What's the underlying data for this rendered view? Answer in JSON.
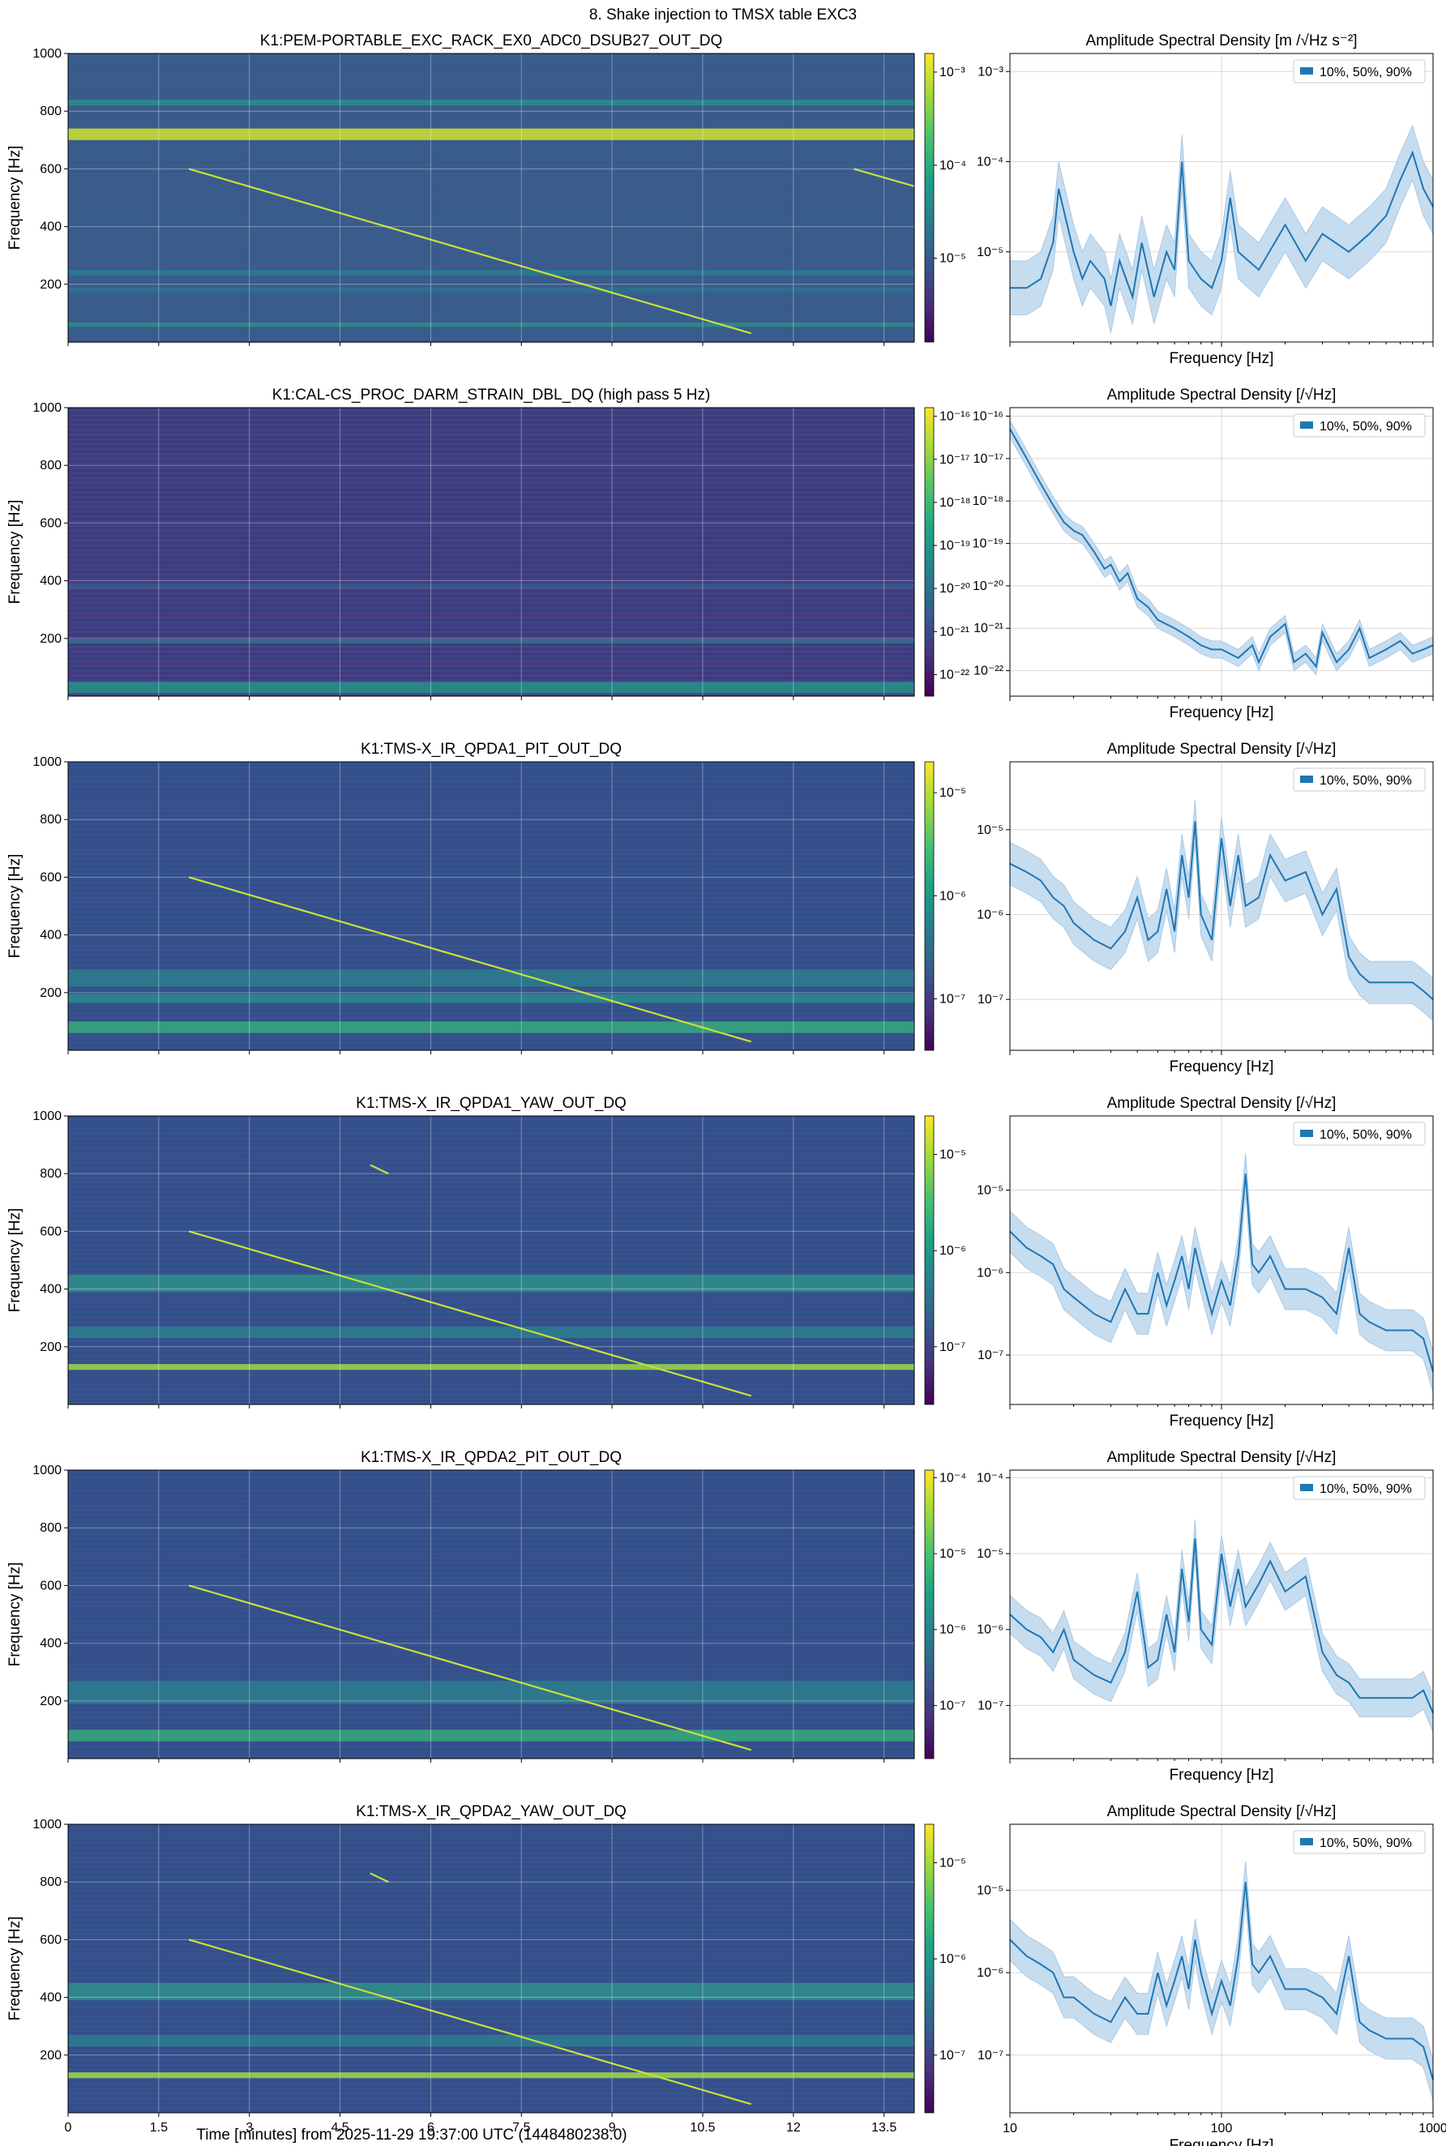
{
  "suptitle": "8. Shake injection to TMSX table EXC3",
  "spectrogram_ylabel": "Frequency [Hz]",
  "asd_xlabel": "Frequency [Hz]",
  "time_xlabel": "Time [minutes] from 2025-11-29 19:37:00 UTC (1448480238.0)",
  "legend_label": "10%, 50%, 90%",
  "colors": {
    "asd_line": "#1f77b4",
    "asd_band": "#c6dcef",
    "grid": "#d8d8d8"
  },
  "chart_data": [
    {
      "type": "heatmap",
      "title": "K1:PEM-PORTABLE_EXC_RACK_EX0_ADC0_DSUB27_OUT_DQ",
      "ylabel": "Frequency [Hz]",
      "xlim": [
        0,
        14
      ],
      "ylim": [
        0,
        1000
      ],
      "yticks": [
        "200",
        "400",
        "600",
        "800",
        "1000"
      ],
      "xticks": [
        "0",
        "1.5",
        "3",
        "4.5",
        "6",
        "7.5",
        "9",
        "10.5",
        "12",
        "13.5"
      ],
      "colorbar_ticks": [
        "10⁻⁵",
        "10⁻⁴",
        "10⁻³"
      ],
      "colorbar_log": [
        -5.9,
        -2.8
      ],
      "bg": "#3b5a8c",
      "bands": [
        {
          "f": 720,
          "w": 40,
          "c": "#c8dc32"
        },
        {
          "f": 830,
          "w": 20,
          "c": "#2a8c8a"
        },
        {
          "f": 240,
          "w": 20,
          "c": "#2a7a8e"
        },
        {
          "f": 180,
          "w": 20,
          "c": "#2d6f8e"
        },
        {
          "f": 60,
          "w": 15,
          "c": "#2e8a8a"
        }
      ],
      "sweeps": [
        {
          "t0": 2.0,
          "f0": 600,
          "t1": 11.3,
          "f1": 30
        },
        {
          "t0": 13.0,
          "f0": 600,
          "t1": 14,
          "f1": 540
        }
      ]
    },
    {
      "type": "heatmap",
      "title": "K1:CAL-CS_PROC_DARM_STRAIN_DBL_DQ (high pass 5 Hz)",
      "ylabel": "Frequency [Hz]",
      "xlim": [
        0,
        14
      ],
      "ylim": [
        0,
        1000
      ],
      "yticks": [
        "200",
        "400",
        "600",
        "800",
        "1000"
      ],
      "xticks": [
        "0",
        "1.5",
        "3",
        "4.5",
        "6",
        "7.5",
        "9",
        "10.5",
        "12",
        "13.5"
      ],
      "colorbar_ticks": [
        "10⁻²²",
        "10⁻²¹",
        "10⁻²⁰",
        "10⁻¹⁹",
        "10⁻¹⁸",
        "10⁻¹⁷",
        "10⁻¹⁶"
      ],
      "colorbar_log": [
        -22.5,
        -15.8
      ],
      "bg": "#423a80",
      "bands": [
        {
          "f": 380,
          "w": 20,
          "c": "#3b5a8c"
        },
        {
          "f": 190,
          "w": 15,
          "c": "#3b6a8c"
        },
        {
          "f": 30,
          "w": 40,
          "c": "#2a8c8a"
        }
      ],
      "sweeps": []
    },
    {
      "type": "heatmap",
      "title": "K1:TMS-X_IR_QPDA1_PIT_OUT_DQ",
      "ylabel": "Frequency [Hz]",
      "xlim": [
        0,
        14
      ],
      "ylim": [
        0,
        1000
      ],
      "yticks": [
        "200",
        "400",
        "600",
        "800",
        "1000"
      ],
      "xticks": [
        "0",
        "1.5",
        "3",
        "4.5",
        "6",
        "7.5",
        "9",
        "10.5",
        "12",
        "13.5"
      ],
      "colorbar_ticks": [
        "10⁻⁷",
        "10⁻⁶",
        "10⁻⁵"
      ],
      "colorbar_log": [
        -7.5,
        -4.7
      ],
      "bg": "#364e8c",
      "bands": [
        {
          "f": 250,
          "w": 60,
          "c": "#2c7b8e"
        },
        {
          "f": 180,
          "w": 30,
          "c": "#2a8a8c"
        },
        {
          "f": 80,
          "w": 40,
          "c": "#35a57c"
        }
      ],
      "sweeps": [
        {
          "t0": 2.0,
          "f0": 600,
          "t1": 11.3,
          "f1": 30
        }
      ]
    },
    {
      "type": "heatmap",
      "title": "K1:TMS-X_IR_QPDA1_YAW_OUT_DQ",
      "ylabel": "Frequency [Hz]",
      "xlim": [
        0,
        14
      ],
      "ylim": [
        0,
        1000
      ],
      "yticks": [
        "200",
        "400",
        "600",
        "800",
        "1000"
      ],
      "xticks": [
        "0",
        "1.5",
        "3",
        "4.5",
        "6",
        "7.5",
        "9",
        "10.5",
        "12",
        "13.5"
      ],
      "colorbar_ticks": [
        "10⁻⁷",
        "10⁻⁶",
        "10⁻⁵"
      ],
      "colorbar_log": [
        -7.6,
        -4.6
      ],
      "bg": "#364e8c",
      "bands": [
        {
          "f": 420,
          "w": 60,
          "c": "#2f8c8a"
        },
        {
          "f": 250,
          "w": 40,
          "c": "#2c7b8e"
        },
        {
          "f": 130,
          "w": 20,
          "c": "#9ad24a"
        }
      ],
      "sweeps": [
        {
          "t0": 2.0,
          "f0": 600,
          "t1": 11.3,
          "f1": 30
        },
        {
          "t0": 5.0,
          "f0": 830,
          "t1": 5.3,
          "f1": 800
        }
      ]
    },
    {
      "type": "heatmap",
      "title": "K1:TMS-X_IR_QPDA2_PIT_OUT_DQ",
      "ylabel": "Frequency [Hz]",
      "xlim": [
        0,
        14
      ],
      "ylim": [
        0,
        1000
      ],
      "yticks": [
        "200",
        "400",
        "600",
        "800",
        "1000"
      ],
      "xticks": [
        "0",
        "1.5",
        "3",
        "4.5",
        "6",
        "7.5",
        "9",
        "10.5",
        "12",
        "13.5"
      ],
      "colorbar_ticks": [
        "10⁻⁷",
        "10⁻⁶",
        "10⁻⁵",
        "10⁻⁴"
      ],
      "colorbar_log": [
        -7.7,
        -3.9
      ],
      "bg": "#364e8c",
      "bands": [
        {
          "f": 230,
          "w": 80,
          "c": "#2c7b8e"
        },
        {
          "f": 80,
          "w": 40,
          "c": "#35a57c"
        }
      ],
      "sweeps": [
        {
          "t0": 2.0,
          "f0": 600,
          "t1": 11.3,
          "f1": 30
        }
      ]
    },
    {
      "type": "heatmap",
      "title": "K1:TMS-X_IR_QPDA2_YAW_OUT_DQ",
      "ylabel": "Frequency [Hz]",
      "xlim": [
        0,
        14
      ],
      "ylim": [
        0,
        1000
      ],
      "yticks": [
        "200",
        "400",
        "600",
        "800",
        "1000"
      ],
      "xticks": [
        "0",
        "1.5",
        "3",
        "4.5",
        "6",
        "7.5",
        "9",
        "10.5",
        "12",
        "13.5"
      ],
      "colorbar_ticks": [
        "10⁻⁷",
        "10⁻⁶",
        "10⁻⁵"
      ],
      "colorbar_log": [
        -7.6,
        -4.6
      ],
      "bg": "#364e8c",
      "bands": [
        {
          "f": 420,
          "w": 60,
          "c": "#2f8c8a"
        },
        {
          "f": 250,
          "w": 40,
          "c": "#2c7b8e"
        },
        {
          "f": 130,
          "w": 20,
          "c": "#9ad24a"
        }
      ],
      "sweeps": [
        {
          "t0": 2.0,
          "f0": 600,
          "t1": 11.3,
          "f1": 30
        },
        {
          "t0": 5.0,
          "f0": 830,
          "t1": 5.3,
          "f1": 800
        }
      ]
    },
    {
      "type": "line",
      "title": "Amplitude Spectral Density [m /√Hz s⁻²]",
      "xlabel": "Frequency [Hz]",
      "xscale": "log",
      "yscale": "log",
      "xlim": [
        10,
        1000
      ],
      "ylog": [
        -6.0,
        -2.8
      ],
      "yticks": [
        {
          "v": -5,
          "l": "10⁻⁵"
        },
        {
          "v": -4,
          "l": "10⁻⁴"
        },
        {
          "v": -3,
          "l": "10⁻³"
        }
      ],
      "xticks": [
        "10",
        "100",
        "1000"
      ],
      "show_xticklabels": false,
      "legend": "10%, 50%, 90%",
      "series": {
        "x": [
          10,
          12,
          14,
          16,
          17,
          20,
          22,
          24,
          28,
          30,
          33,
          38,
          42,
          48,
          55,
          60,
          65,
          70,
          80,
          90,
          100,
          110,
          120,
          150,
          200,
          250,
          300,
          400,
          500,
          600,
          700,
          800,
          900,
          1000
        ],
        "y": [
          -5.4,
          -5.4,
          -5.3,
          -4.9,
          -4.3,
          -5.0,
          -5.3,
          -5.1,
          -5.3,
          -5.6,
          -5.1,
          -5.5,
          -4.9,
          -5.5,
          -5.0,
          -5.2,
          -4.0,
          -5.1,
          -5.3,
          -5.4,
          -5.1,
          -4.4,
          -5.0,
          -5.2,
          -4.7,
          -5.1,
          -4.8,
          -5.0,
          -4.8,
          -4.6,
          -4.2,
          -3.9,
          -4.3,
          -4.5
        ]
      },
      "band": 0.3
    },
    {
      "type": "line",
      "title": "Amplitude Spectral Density [/√Hz]",
      "xlabel": "Frequency [Hz]",
      "xscale": "log",
      "yscale": "log",
      "xlim": [
        10,
        1000
      ],
      "ylog": [
        -22.6,
        -15.8
      ],
      "yticks": [
        {
          "v": -22,
          "l": "10⁻²²"
        },
        {
          "v": -21,
          "l": "10⁻²¹"
        },
        {
          "v": -20,
          "l": "10⁻²⁰"
        },
        {
          "v": -19,
          "l": "10⁻¹⁹"
        },
        {
          "v": -18,
          "l": "10⁻¹⁸"
        },
        {
          "v": -17,
          "l": "10⁻¹⁷"
        },
        {
          "v": -16,
          "l": "10⁻¹⁶"
        }
      ],
      "xticks": [
        "10",
        "100",
        "1000"
      ],
      "show_xticklabels": false,
      "legend": "10%, 50%, 90%",
      "series": {
        "x": [
          10,
          12,
          14,
          16,
          18,
          20,
          22,
          25,
          28,
          30,
          33,
          36,
          40,
          45,
          50,
          60,
          70,
          80,
          90,
          100,
          120,
          140,
          150,
          170,
          200,
          220,
          250,
          280,
          300,
          350,
          400,
          450,
          500,
          600,
          700,
          800,
          900,
          1000
        ],
        "y": [
          -16.3,
          -17.0,
          -17.6,
          -18.1,
          -18.5,
          -18.7,
          -18.8,
          -19.2,
          -19.6,
          -19.5,
          -19.9,
          -19.7,
          -20.3,
          -20.5,
          -20.8,
          -21.0,
          -21.2,
          -21.4,
          -21.5,
          -21.5,
          -21.7,
          -21.4,
          -21.8,
          -21.2,
          -20.9,
          -21.8,
          -21.6,
          -21.9,
          -21.1,
          -21.8,
          -21.5,
          -21.0,
          -21.7,
          -21.5,
          -21.3,
          -21.6,
          -21.5,
          -21.4
        ]
      },
      "band": 0.2
    },
    {
      "type": "line",
      "title": "Amplitude Spectral Density [/√Hz]",
      "xlabel": "Frequency [Hz]",
      "xscale": "log",
      "yscale": "log",
      "xlim": [
        10,
        1000
      ],
      "ylog": [
        -7.6,
        -4.2
      ],
      "yticks": [
        {
          "v": -7,
          "l": "10⁻⁷"
        },
        {
          "v": -6,
          "l": "10⁻⁶"
        },
        {
          "v": -5,
          "l": "10⁻⁵"
        }
      ],
      "xticks": [
        "10",
        "100",
        "1000"
      ],
      "show_xticklabels": false,
      "legend": "10%, 50%, 90%",
      "series": {
        "x": [
          10,
          12,
          14,
          16,
          18,
          20,
          25,
          30,
          35,
          40,
          45,
          50,
          55,
          60,
          65,
          70,
          75,
          80,
          90,
          100,
          110,
          120,
          130,
          150,
          170,
          200,
          250,
          300,
          350,
          400,
          450,
          500,
          600,
          700,
          800,
          900,
          1000
        ],
        "y": [
          -5.4,
          -5.5,
          -5.6,
          -5.8,
          -5.9,
          -6.1,
          -6.3,
          -6.4,
          -6.2,
          -5.8,
          -6.3,
          -6.2,
          -5.7,
          -6.2,
          -5.3,
          -5.8,
          -4.9,
          -6.0,
          -6.3,
          -5.1,
          -5.9,
          -5.3,
          -5.9,
          -5.8,
          -5.3,
          -5.6,
          -5.5,
          -6.0,
          -5.7,
          -6.5,
          -6.7,
          -6.8,
          -6.8,
          -6.8,
          -6.8,
          -6.9,
          -7.0
        ]
      },
      "band": 0.25
    },
    {
      "type": "line",
      "title": "Amplitude Spectral Density [/√Hz]",
      "xlabel": "Frequency [Hz]",
      "xscale": "log",
      "yscale": "log",
      "xlim": [
        10,
        1000
      ],
      "ylog": [
        -7.6,
        -4.1
      ],
      "yticks": [
        {
          "v": -7,
          "l": "10⁻⁷"
        },
        {
          "v": -6,
          "l": "10⁻⁶"
        },
        {
          "v": -5,
          "l": "10⁻⁵"
        }
      ],
      "xticks": [
        "10",
        "100",
        "1000"
      ],
      "show_xticklabels": false,
      "legend": "10%, 50%, 90%",
      "series": {
        "x": [
          10,
          12,
          14,
          16,
          18,
          20,
          25,
          30,
          35,
          40,
          45,
          50,
          55,
          60,
          65,
          70,
          75,
          80,
          90,
          100,
          110,
          120,
          130,
          140,
          150,
          170,
          200,
          250,
          300,
          350,
          400,
          450,
          500,
          600,
          700,
          800,
          900,
          1000
        ],
        "y": [
          -5.5,
          -5.7,
          -5.8,
          -5.9,
          -6.2,
          -6.3,
          -6.5,
          -6.6,
          -6.2,
          -6.5,
          -6.5,
          -6.0,
          -6.4,
          -6.1,
          -5.8,
          -6.2,
          -5.7,
          -6.0,
          -6.5,
          -6.1,
          -6.4,
          -5.8,
          -4.8,
          -5.9,
          -6.0,
          -5.8,
          -6.2,
          -6.2,
          -6.3,
          -6.5,
          -5.7,
          -6.5,
          -6.6,
          -6.7,
          -6.7,
          -6.7,
          -6.8,
          -7.2
        ]
      },
      "band": 0.25
    },
    {
      "type": "line",
      "title": "Amplitude Spectral Density [/√Hz]",
      "xlabel": "Frequency [Hz]",
      "xscale": "log",
      "yscale": "log",
      "xlim": [
        10,
        1000
      ],
      "ylog": [
        -7.7,
        -3.9
      ],
      "yticks": [
        {
          "v": -7,
          "l": "10⁻⁷"
        },
        {
          "v": -6,
          "l": "10⁻⁶"
        },
        {
          "v": -5,
          "l": "10⁻⁵"
        },
        {
          "v": -4,
          "l": "10⁻⁴"
        }
      ],
      "xticks": [
        "10",
        "100",
        "1000"
      ],
      "show_xticklabels": false,
      "legend": "10%, 50%, 90%",
      "series": {
        "x": [
          10,
          12,
          14,
          16,
          18,
          20,
          25,
          30,
          35,
          40,
          45,
          50,
          55,
          60,
          65,
          70,
          75,
          80,
          90,
          100,
          110,
          120,
          130,
          150,
          170,
          200,
          250,
          300,
          350,
          400,
          450,
          500,
          600,
          700,
          800,
          900,
          1000
        ],
        "y": [
          -5.8,
          -6.0,
          -6.1,
          -6.3,
          -6.0,
          -6.4,
          -6.6,
          -6.7,
          -6.3,
          -5.5,
          -6.5,
          -6.4,
          -5.8,
          -6.3,
          -5.2,
          -5.9,
          -4.8,
          -6.0,
          -6.2,
          -5.0,
          -5.7,
          -5.2,
          -5.7,
          -5.4,
          -5.1,
          -5.5,
          -5.3,
          -6.3,
          -6.6,
          -6.7,
          -6.9,
          -6.9,
          -6.9,
          -6.9,
          -6.9,
          -6.8,
          -7.1
        ]
      },
      "band": 0.25
    },
    {
      "type": "line",
      "title": "Amplitude Spectral Density [/√Hz]",
      "xlabel": "Frequency [Hz]",
      "xscale": "log",
      "yscale": "log",
      "xlim": [
        10,
        1000
      ],
      "ylog": [
        -7.7,
        -4.2
      ],
      "yticks": [
        {
          "v": -7,
          "l": "10⁻⁷"
        },
        {
          "v": -6,
          "l": "10⁻⁶"
        },
        {
          "v": -5,
          "l": "10⁻⁵"
        }
      ],
      "xticks": [
        "10",
        "100",
        "1000"
      ],
      "show_xticklabels": true,
      "legend": "10%, 50%, 90%",
      "series": {
        "x": [
          10,
          12,
          14,
          16,
          18,
          20,
          25,
          30,
          35,
          40,
          45,
          50,
          55,
          60,
          65,
          70,
          75,
          80,
          90,
          100,
          110,
          120,
          130,
          140,
          150,
          170,
          200,
          250,
          300,
          350,
          400,
          450,
          500,
          600,
          700,
          800,
          900,
          1000
        ],
        "y": [
          -5.6,
          -5.8,
          -5.9,
          -6.0,
          -6.3,
          -6.3,
          -6.5,
          -6.6,
          -6.3,
          -6.5,
          -6.5,
          -6.0,
          -6.4,
          -6.1,
          -5.8,
          -6.2,
          -5.6,
          -6.0,
          -6.5,
          -6.1,
          -6.4,
          -5.8,
          -4.9,
          -5.9,
          -6.0,
          -5.8,
          -6.2,
          -6.2,
          -6.3,
          -6.5,
          -5.8,
          -6.6,
          -6.7,
          -6.8,
          -6.8,
          -6.8,
          -6.9,
          -7.3
        ]
      },
      "band": 0.25
    }
  ]
}
